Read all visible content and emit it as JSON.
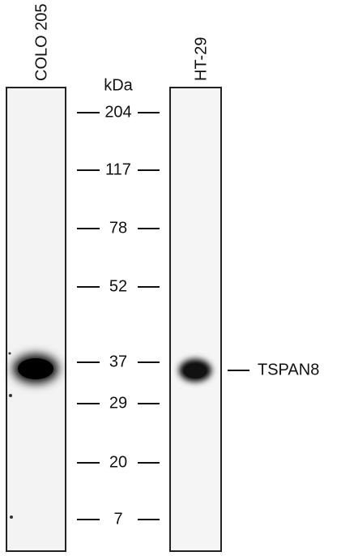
{
  "lanes": [
    {
      "label": "COLO 205"
    },
    {
      "label": "HT-29"
    }
  ],
  "unit": "kDa",
  "markers": [
    204,
    117,
    78,
    52,
    37,
    29,
    20,
    7
  ],
  "band_label": "TSPAN8"
}
